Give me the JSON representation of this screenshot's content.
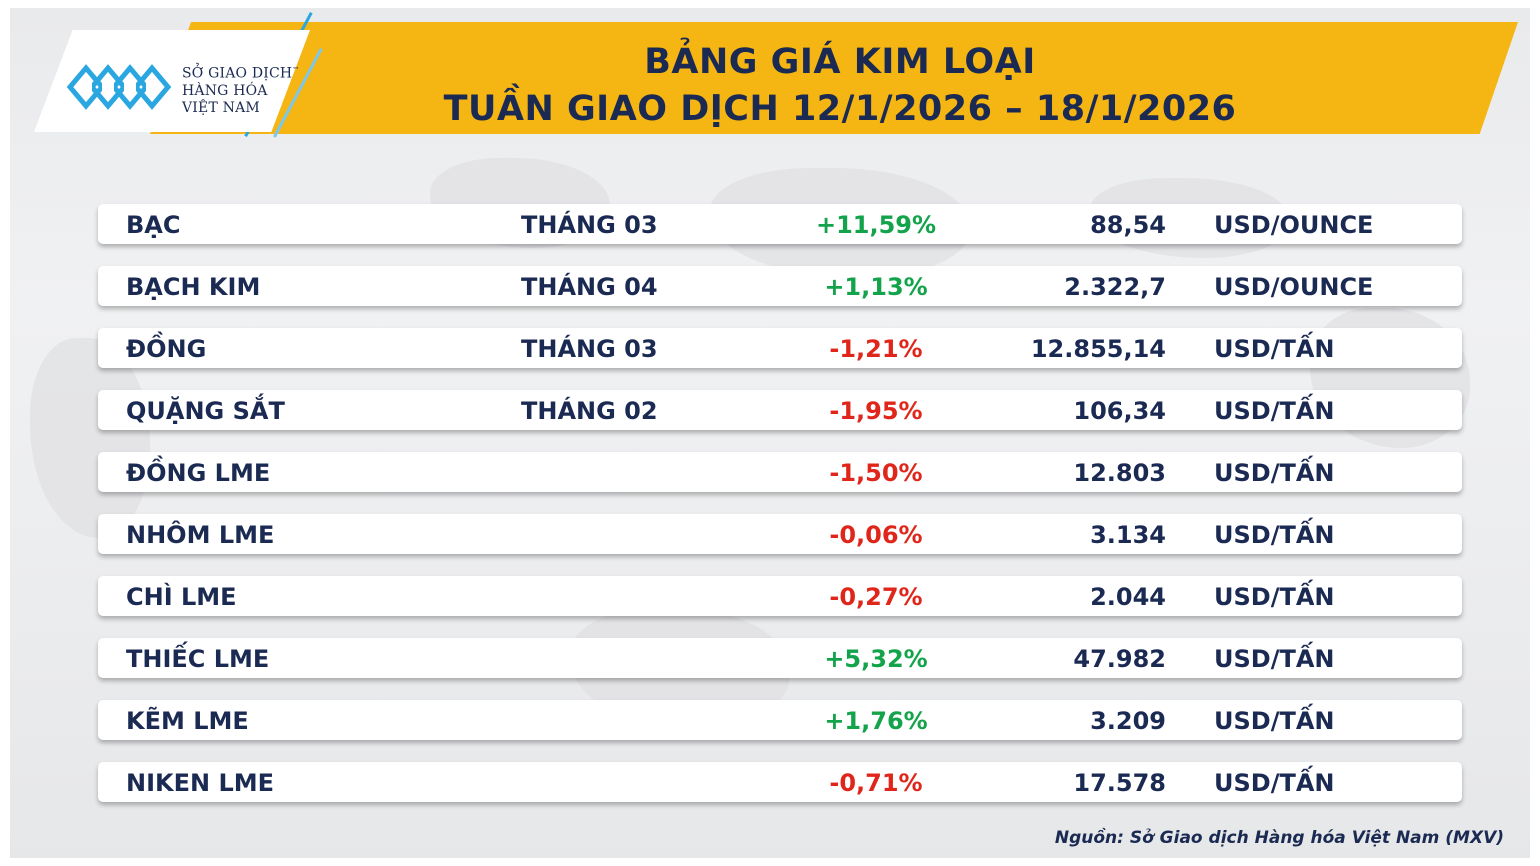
{
  "header": {
    "title_line1": "BẢNG GIÁ KIM LOẠI",
    "title_line2": "TUẦN GIAO DỊCH 12/1/2026 – 18/1/2026"
  },
  "logo": {
    "line1": "SỞ GIAO DỊCH",
    "line2": "HÀNG HÓA",
    "line3": "VIỆT NAM",
    "trademark": "™",
    "icon": "mxv-logo-mark",
    "colors": {
      "mark": "#2aa7e0",
      "text": "#1b2a52"
    }
  },
  "colors": {
    "band": "#f5b512",
    "text": "#1b2a52",
    "up": "#13a34a",
    "down": "#e0261b"
  },
  "rows": [
    {
      "name": "BẠC",
      "month": "THÁNG 03",
      "change": "+11,59%",
      "dir": "up",
      "price": "88,54",
      "unit": "USD/OUNCE"
    },
    {
      "name": "BẠCH KIM",
      "month": "THÁNG 04",
      "change": "+1,13%",
      "dir": "up",
      "price": "2.322,7",
      "unit": "USD/OUNCE"
    },
    {
      "name": "ĐỒNG",
      "month": "THÁNG 03",
      "change": "-1,21%",
      "dir": "down",
      "price": "12.855,14",
      "unit": "USD/TẤN"
    },
    {
      "name": "QUẶNG SẮT",
      "month": "THÁNG 02",
      "change": "-1,95%",
      "dir": "down",
      "price": "106,34",
      "unit": "USD/TẤN"
    },
    {
      "name": "ĐỒNG LME",
      "month": "",
      "change": "-1,50%",
      "dir": "down",
      "price": "12.803",
      "unit": "USD/TẤN"
    },
    {
      "name": "NHÔM LME",
      "month": "",
      "change": "-0,06%",
      "dir": "down",
      "price": "3.134",
      "unit": "USD/TẤN"
    },
    {
      "name": "CHÌ LME",
      "month": "",
      "change": "-0,27%",
      "dir": "down",
      "price": "2.044",
      "unit": "USD/TẤN"
    },
    {
      "name": "THIẾC LME",
      "month": "",
      "change": "+5,32%",
      "dir": "up",
      "price": "47.982",
      "unit": "USD/TẤN"
    },
    {
      "name": "KẼM LME",
      "month": "",
      "change": "+1,76%",
      "dir": "up",
      "price": "3.209",
      "unit": "USD/TẤN"
    },
    {
      "name": "NIKEN LME",
      "month": "",
      "change": "-0,71%",
      "dir": "down",
      "price": "17.578",
      "unit": "USD/TẤN"
    }
  ],
  "footer": {
    "source": "Nguồn: Sở Giao dịch Hàng hóa Việt Nam (MXV)"
  }
}
